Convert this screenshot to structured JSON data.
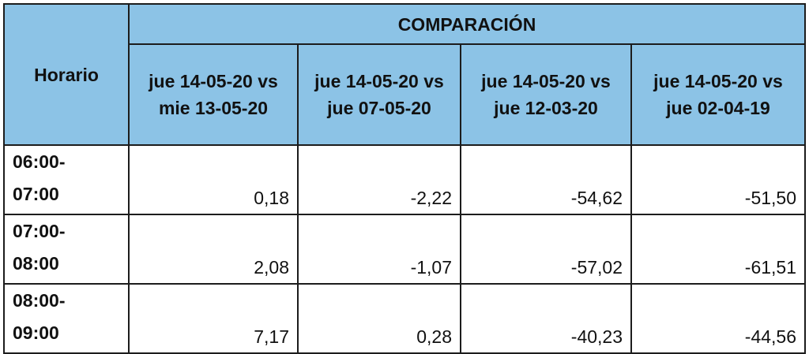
{
  "table": {
    "row_header": "Horario",
    "group_header": "COMPARACIÓN",
    "columns": [
      "jue 14-05-20 vs mie 13-05-20",
      "jue 14-05-20 vs jue 07-05-20",
      "jue 14-05-20 vs jue 12-03-20",
      "jue 14-05-20 vs jue 02-04-19"
    ],
    "rows": [
      {
        "time_start": "06:00-",
        "time_end": "07:00",
        "values": [
          "0,18",
          "-2,22",
          "-54,62",
          "-51,50"
        ]
      },
      {
        "time_start": "07:00-",
        "time_end": "08:00",
        "values": [
          "2,08",
          "-1,07",
          "-57,02",
          "-61,51"
        ]
      },
      {
        "time_start": "08:00-",
        "time_end": "09:00",
        "values": [
          "7,17",
          "0,28",
          "-40,23",
          "-44,56"
        ]
      }
    ]
  },
  "colors": {
    "header_background": "#8cc3e6",
    "border": "#1c1c1c",
    "text": "#111111"
  }
}
